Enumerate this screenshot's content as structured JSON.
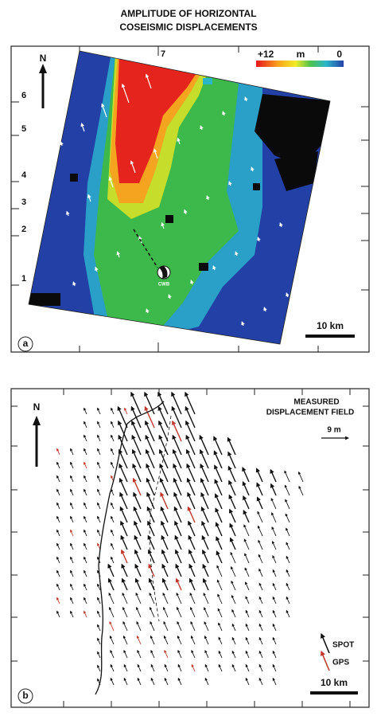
{
  "title": [
    "AMPLITUDE OF HORIZONTAL",
    "COSEISMIC DISPLACEMENTS"
  ],
  "panel_a": {
    "label": "a",
    "north": "N",
    "colorbar": {
      "max": "+12",
      "unit": "m",
      "min": "0"
    },
    "y_ticks": [
      "6",
      "5",
      "4",
      "3",
      "2",
      "1"
    ],
    "x_tick": "7",
    "station": "CWB",
    "scale": "10 km"
  },
  "panel_b": {
    "label": "b",
    "north": "N",
    "title": [
      "MEASURED",
      "DISPLACEMENT FIELD"
    ],
    "arrow_scale": "9 m",
    "legend": [
      "SPOT",
      "GPS"
    ],
    "scale": "10 km"
  }
}
